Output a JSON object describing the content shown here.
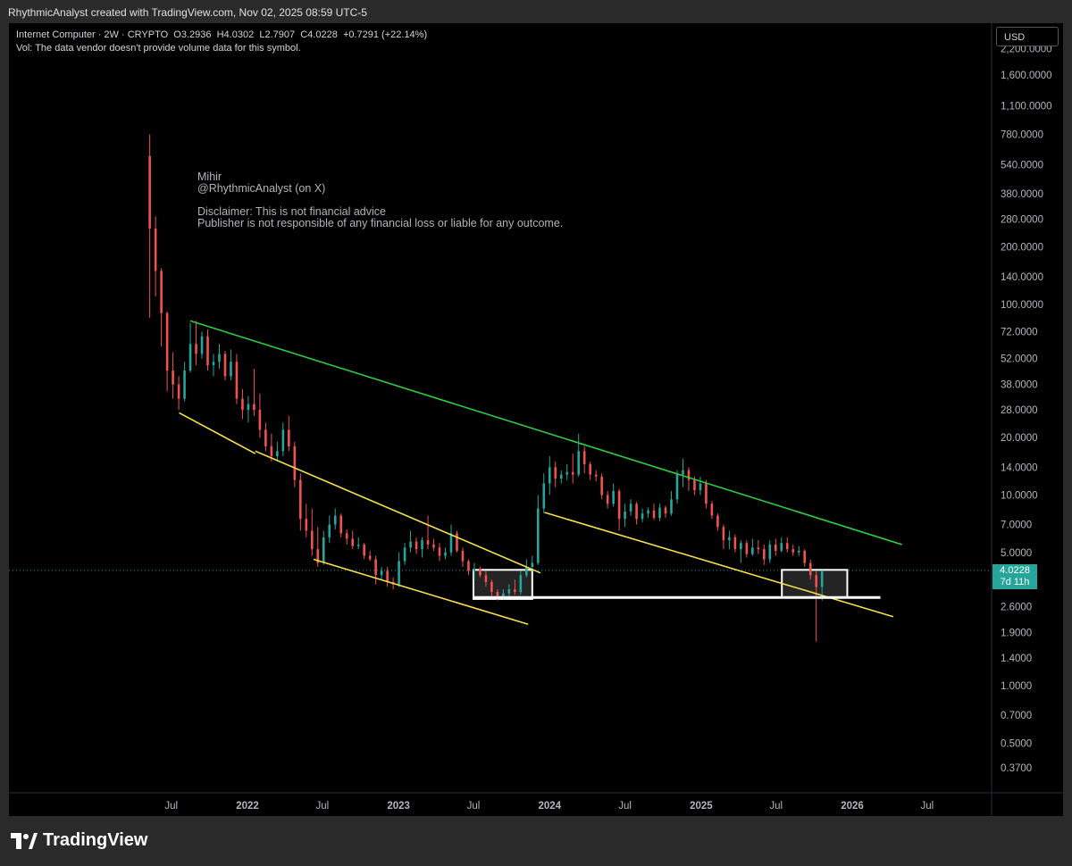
{
  "header": {
    "text": "RhythmicAnalyst created with TradingView.com, Nov 02, 2025 08:59 UTC-5"
  },
  "legend": {
    "symbol": "Internet Computer · 2W · CRYPTO",
    "open": "O3.2936",
    "high": "H4.0302",
    "low": "L2.7907",
    "close": "C4.0228",
    "change": "+0.7291 (+22.14%)",
    "vol_note": "Vol: The data vendor doesn't provide volume data for this symbol."
  },
  "watermark": {
    "lines": [
      "Mihir",
      "@RhythmicAnalyst (on X)",
      "",
      "Disclaimer: This is not financial advice",
      "Publisher is not responsible of any financial loss or liable for any outcome."
    ]
  },
  "currency_button": "USD",
  "price_badge": {
    "price": "4.0228",
    "countdown": "7d 11h"
  },
  "footer": {
    "brand": "TradingView",
    "logo_icon": "tradingview-logo-icon"
  },
  "colors": {
    "up": "#26a69a",
    "down": "#ef5350",
    "resistance": "#2ecc40",
    "channel": "#f5e04a",
    "support": "#ffffff"
  },
  "chart_data": {
    "type": "candlestick",
    "symbol": "Internet Computer",
    "interval": "2W",
    "y_scale": "log",
    "y_ticks": [
      "2,200.0000",
      "1,600.0000",
      "1,100.0000",
      "780.0000",
      "540.0000",
      "380.0000",
      "280.0000",
      "200.0000",
      "140.0000",
      "100.0000",
      "72.0000",
      "52.0000",
      "38.0000",
      "28.0000",
      "20.0000",
      "14.0000",
      "10.0000",
      "7.0000",
      "5.0000",
      "2.6000",
      "1.9000",
      "1.4000",
      "1.0000",
      "0.7000",
      "0.5000",
      "0.3700"
    ],
    "x_ticks": [
      {
        "label": "Jul",
        "t": "2021-07-01",
        "bold": false
      },
      {
        "label": "2022",
        "t": "2022-01-01",
        "bold": true
      },
      {
        "label": "Jul",
        "t": "2022-07-01",
        "bold": false
      },
      {
        "label": "2023",
        "t": "2023-01-01",
        "bold": true
      },
      {
        "label": "Jul",
        "t": "2023-07-01",
        "bold": false
      },
      {
        "label": "2024",
        "t": "2024-01-01",
        "bold": true
      },
      {
        "label": "Jul",
        "t": "2024-07-01",
        "bold": false
      },
      {
        "label": "2025",
        "t": "2025-01-01",
        "bold": true
      },
      {
        "label": "Jul",
        "t": "2025-07-01",
        "bold": false
      },
      {
        "label": "2026",
        "t": "2026-01-01",
        "bold": true
      },
      {
        "label": "Jul",
        "t": "2026-07-01",
        "bold": false
      }
    ],
    "last_price": 4.0228,
    "candles": [
      {
        "t": "2021-05-10",
        "o": 600,
        "h": 780,
        "l": 85,
        "c": 250
      },
      {
        "t": "2021-05-24",
        "o": 250,
        "h": 290,
        "l": 110,
        "c": 150
      },
      {
        "t": "2021-06-07",
        "o": 150,
        "h": 155,
        "l": 60,
        "c": 90
      },
      {
        "t": "2021-06-21",
        "o": 90,
        "h": 92,
        "l": 35,
        "c": 45
      },
      {
        "t": "2021-07-05",
        "o": 45,
        "h": 56,
        "l": 32,
        "c": 38
      },
      {
        "t": "2021-07-19",
        "o": 38,
        "h": 42,
        "l": 28,
        "c": 32
      },
      {
        "t": "2021-08-02",
        "o": 32,
        "h": 50,
        "l": 31,
        "c": 45
      },
      {
        "t": "2021-08-16",
        "o": 45,
        "h": 80,
        "l": 44,
        "c": 62
      },
      {
        "t": "2021-08-30",
        "o": 62,
        "h": 82,
        "l": 48,
        "c": 55
      },
      {
        "t": "2021-09-13",
        "o": 55,
        "h": 72,
        "l": 52,
        "c": 68
      },
      {
        "t": "2021-09-27",
        "o": 68,
        "h": 74,
        "l": 45,
        "c": 48
      },
      {
        "t": "2021-10-11",
        "o": 48,
        "h": 55,
        "l": 42,
        "c": 50
      },
      {
        "t": "2021-10-25",
        "o": 50,
        "h": 62,
        "l": 46,
        "c": 55
      },
      {
        "t": "2021-11-08",
        "o": 55,
        "h": 57,
        "l": 40,
        "c": 42
      },
      {
        "t": "2021-11-22",
        "o": 42,
        "h": 58,
        "l": 40,
        "c": 50
      },
      {
        "t": "2021-12-06",
        "o": 50,
        "h": 55,
        "l": 30,
        "c": 32
      },
      {
        "t": "2021-12-20",
        "o": 32,
        "h": 36,
        "l": 25,
        "c": 28
      },
      {
        "t": "2022-01-03",
        "o": 28,
        "h": 33,
        "l": 24,
        "c": 30
      },
      {
        "t": "2022-01-17",
        "o": 30,
        "h": 46,
        "l": 26,
        "c": 28
      },
      {
        "t": "2022-01-31",
        "o": 28,
        "h": 34,
        "l": 20,
        "c": 22
      },
      {
        "t": "2022-02-14",
        "o": 22,
        "h": 24,
        "l": 17,
        "c": 18
      },
      {
        "t": "2022-02-28",
        "o": 18,
        "h": 21,
        "l": 15,
        "c": 16
      },
      {
        "t": "2022-03-14",
        "o": 16,
        "h": 19,
        "l": 15,
        "c": 17
      },
      {
        "t": "2022-03-28",
        "o": 17,
        "h": 24,
        "l": 16,
        "c": 22
      },
      {
        "t": "2022-04-11",
        "o": 22,
        "h": 26,
        "l": 17,
        "c": 18
      },
      {
        "t": "2022-04-25",
        "o": 18,
        "h": 19,
        "l": 11,
        "c": 12
      },
      {
        "t": "2022-05-09",
        "o": 12,
        "h": 13,
        "l": 6.5,
        "c": 7.5
      },
      {
        "t": "2022-05-23",
        "o": 7.5,
        "h": 9,
        "l": 6,
        "c": 6.5
      },
      {
        "t": "2022-06-06",
        "o": 6.5,
        "h": 8.5,
        "l": 4.8,
        "c": 5.2
      },
      {
        "t": "2022-06-20",
        "o": 5.2,
        "h": 6.8,
        "l": 4.2,
        "c": 4.4
      },
      {
        "t": "2022-07-04",
        "o": 4.4,
        "h": 6.5,
        "l": 4.3,
        "c": 6
      },
      {
        "t": "2022-07-18",
        "o": 6,
        "h": 7.8,
        "l": 5.6,
        "c": 7
      },
      {
        "t": "2022-08-01",
        "o": 7,
        "h": 8.5,
        "l": 6.6,
        "c": 7.8
      },
      {
        "t": "2022-08-15",
        "o": 7.8,
        "h": 8,
        "l": 6,
        "c": 6.3
      },
      {
        "t": "2022-08-29",
        "o": 6.3,
        "h": 6.6,
        "l": 5.5,
        "c": 5.9
      },
      {
        "t": "2022-09-12",
        "o": 5.9,
        "h": 6.5,
        "l": 5.2,
        "c": 5.4
      },
      {
        "t": "2022-09-26",
        "o": 5.4,
        "h": 6,
        "l": 5.2,
        "c": 5.5
      },
      {
        "t": "2022-10-10",
        "o": 5.5,
        "h": 5.6,
        "l": 4.6,
        "c": 4.8
      },
      {
        "t": "2022-10-24",
        "o": 4.8,
        "h": 5.1,
        "l": 4.5,
        "c": 4.6
      },
      {
        "t": "2022-11-07",
        "o": 4.6,
        "h": 4.8,
        "l": 3.4,
        "c": 3.8
      },
      {
        "t": "2022-11-21",
        "o": 3.8,
        "h": 4.2,
        "l": 3.6,
        "c": 4
      },
      {
        "t": "2022-12-05",
        "o": 4,
        "h": 4.2,
        "l": 3.3,
        "c": 3.5
      },
      {
        "t": "2022-12-19",
        "o": 3.5,
        "h": 3.7,
        "l": 3.2,
        "c": 3.4
      },
      {
        "t": "2023-01-02",
        "o": 3.4,
        "h": 5,
        "l": 3.3,
        "c": 4.5
      },
      {
        "t": "2023-01-16",
        "o": 4.5,
        "h": 5.6,
        "l": 4.3,
        "c": 5.3
      },
      {
        "t": "2023-01-30",
        "o": 5.3,
        "h": 6.5,
        "l": 5,
        "c": 5.7
      },
      {
        "t": "2023-02-13",
        "o": 5.7,
        "h": 6,
        "l": 4.9,
        "c": 5.2
      },
      {
        "t": "2023-02-27",
        "o": 5.2,
        "h": 6,
        "l": 4.7,
        "c": 5.8
      },
      {
        "t": "2023-03-13",
        "o": 5.8,
        "h": 7.8,
        "l": 5.2,
        "c": 5.5
      },
      {
        "t": "2023-03-27",
        "o": 5.5,
        "h": 5.9,
        "l": 5.1,
        "c": 5.3
      },
      {
        "t": "2023-04-10",
        "o": 5.3,
        "h": 5.6,
        "l": 4.5,
        "c": 4.8
      },
      {
        "t": "2023-04-24",
        "o": 4.8,
        "h": 5.3,
        "l": 4.6,
        "c": 5
      },
      {
        "t": "2023-05-08",
        "o": 5,
        "h": 7,
        "l": 4.8,
        "c": 6.3
      },
      {
        "t": "2023-05-22",
        "o": 6.3,
        "h": 6.5,
        "l": 5,
        "c": 5.1
      },
      {
        "t": "2023-06-05",
        "o": 5.1,
        "h": 5.3,
        "l": 4.2,
        "c": 4.5
      },
      {
        "t": "2023-06-19",
        "o": 4.5,
        "h": 4.6,
        "l": 3.8,
        "c": 4
      },
      {
        "t": "2023-07-03",
        "o": 4,
        "h": 4.4,
        "l": 3.6,
        "c": 4.1
      },
      {
        "t": "2023-07-17",
        "o": 4.1,
        "h": 4.2,
        "l": 3.7,
        "c": 3.8
      },
      {
        "t": "2023-07-31",
        "o": 3.8,
        "h": 4,
        "l": 3.3,
        "c": 3.5
      },
      {
        "t": "2023-08-14",
        "o": 3.5,
        "h": 3.6,
        "l": 2.9,
        "c": 3.1
      },
      {
        "t": "2023-08-28",
        "o": 3.1,
        "h": 3.2,
        "l": 2.8,
        "c": 2.95
      },
      {
        "t": "2023-09-11",
        "o": 2.95,
        "h": 3.2,
        "l": 2.85,
        "c": 3.05
      },
      {
        "t": "2023-09-25",
        "o": 3.05,
        "h": 3.4,
        "l": 2.9,
        "c": 3.2
      },
      {
        "t": "2023-10-09",
        "o": 3.2,
        "h": 3.6,
        "l": 3,
        "c": 3.1
      },
      {
        "t": "2023-10-23",
        "o": 3.1,
        "h": 4,
        "l": 3,
        "c": 3.8
      },
      {
        "t": "2023-11-06",
        "o": 3.8,
        "h": 4.6,
        "l": 3.7,
        "c": 4.2
      },
      {
        "t": "2023-11-20",
        "o": 4.2,
        "h": 4.8,
        "l": 4,
        "c": 4.4
      },
      {
        "t": "2023-12-04",
        "o": 4.4,
        "h": 10,
        "l": 4.3,
        "c": 8.5
      },
      {
        "t": "2023-12-18",
        "o": 8.5,
        "h": 13,
        "l": 8,
        "c": 11.5
      },
      {
        "t": "2024-01-01",
        "o": 11.5,
        "h": 16,
        "l": 10,
        "c": 14
      },
      {
        "t": "2024-01-15",
        "o": 14,
        "h": 15,
        "l": 11,
        "c": 12.2
      },
      {
        "t": "2024-01-29",
        "o": 12.2,
        "h": 13.5,
        "l": 11.5,
        "c": 12.8
      },
      {
        "t": "2024-02-12",
        "o": 12.8,
        "h": 14.5,
        "l": 12,
        "c": 13.2
      },
      {
        "t": "2024-02-26",
        "o": 13.2,
        "h": 16.5,
        "l": 11.5,
        "c": 12.8
      },
      {
        "t": "2024-03-11",
        "o": 12.8,
        "h": 21,
        "l": 12.5,
        "c": 17
      },
      {
        "t": "2024-03-25",
        "o": 17,
        "h": 18,
        "l": 13,
        "c": 14.5
      },
      {
        "t": "2024-04-08",
        "o": 14.5,
        "h": 15,
        "l": 12,
        "c": 12.8
      },
      {
        "t": "2024-04-22",
        "o": 12.8,
        "h": 13.5,
        "l": 11.8,
        "c": 12.5
      },
      {
        "t": "2024-05-06",
        "o": 12.5,
        "h": 13,
        "l": 9.5,
        "c": 10
      },
      {
        "t": "2024-05-20",
        "o": 10,
        "h": 10.5,
        "l": 8.5,
        "c": 9
      },
      {
        "t": "2024-06-03",
        "o": 9,
        "h": 11.5,
        "l": 8.7,
        "c": 10.5
      },
      {
        "t": "2024-06-17",
        "o": 10.5,
        "h": 10.8,
        "l": 6.5,
        "c": 7.5
      },
      {
        "t": "2024-07-01",
        "o": 7.5,
        "h": 9,
        "l": 6.8,
        "c": 8.2
      },
      {
        "t": "2024-07-15",
        "o": 8.2,
        "h": 9.5,
        "l": 7.8,
        "c": 9
      },
      {
        "t": "2024-07-29",
        "o": 9,
        "h": 9.2,
        "l": 7,
        "c": 7.5
      },
      {
        "t": "2024-08-12",
        "o": 7.5,
        "h": 8.5,
        "l": 7.2,
        "c": 8
      },
      {
        "t": "2024-08-26",
        "o": 8,
        "h": 8.6,
        "l": 7.6,
        "c": 8.3
      },
      {
        "t": "2024-09-09",
        "o": 8.3,
        "h": 9,
        "l": 7.4,
        "c": 7.6
      },
      {
        "t": "2024-09-23",
        "o": 7.6,
        "h": 9,
        "l": 7.3,
        "c": 8.6
      },
      {
        "t": "2024-10-07",
        "o": 8.6,
        "h": 8.8,
        "l": 7.6,
        "c": 8
      },
      {
        "t": "2024-10-21",
        "o": 8,
        "h": 10.5,
        "l": 7.8,
        "c": 9.5
      },
      {
        "t": "2024-11-04",
        "o": 9.5,
        "h": 13.5,
        "l": 9,
        "c": 12.8
      },
      {
        "t": "2024-11-18",
        "o": 12.8,
        "h": 15.5,
        "l": 11,
        "c": 13.5
      },
      {
        "t": "2024-12-02",
        "o": 13.5,
        "h": 14,
        "l": 10.5,
        "c": 12
      },
      {
        "t": "2024-12-16",
        "o": 12,
        "h": 12.5,
        "l": 10,
        "c": 10.6
      },
      {
        "t": "2024-12-30",
        "o": 10.6,
        "h": 12.5,
        "l": 10,
        "c": 11.5
      },
      {
        "t": "2025-01-13",
        "o": 11.5,
        "h": 12,
        "l": 8.5,
        "c": 9
      },
      {
        "t": "2025-01-27",
        "o": 9,
        "h": 9.3,
        "l": 7.5,
        "c": 7.8
      },
      {
        "t": "2025-02-10",
        "o": 7.8,
        "h": 8,
        "l": 6.5,
        "c": 6.8
      },
      {
        "t": "2025-02-24",
        "o": 6.8,
        "h": 7,
        "l": 5.2,
        "c": 5.8
      },
      {
        "t": "2025-03-10",
        "o": 5.8,
        "h": 6.5,
        "l": 5.2,
        "c": 6
      },
      {
        "t": "2025-03-24",
        "o": 6,
        "h": 6.2,
        "l": 5,
        "c": 5.2
      },
      {
        "t": "2025-04-07",
        "o": 5.2,
        "h": 5.8,
        "l": 4.4,
        "c": 5.6
      },
      {
        "t": "2025-04-21",
        "o": 5.6,
        "h": 5.8,
        "l": 4.7,
        "c": 4.9
      },
      {
        "t": "2025-05-05",
        "o": 4.9,
        "h": 5.9,
        "l": 4.8,
        "c": 5.3
      },
      {
        "t": "2025-05-19",
        "o": 5.3,
        "h": 5.8,
        "l": 4.9,
        "c": 5.2
      },
      {
        "t": "2025-06-02",
        "o": 5.2,
        "h": 5.5,
        "l": 4.3,
        "c": 4.6
      },
      {
        "t": "2025-06-16",
        "o": 4.6,
        "h": 5.8,
        "l": 4.4,
        "c": 5.5
      },
      {
        "t": "2025-06-30",
        "o": 5.5,
        "h": 5.9,
        "l": 4.8,
        "c": 5.1
      },
      {
        "t": "2025-07-14",
        "o": 5.1,
        "h": 6,
        "l": 5,
        "c": 5.6
      },
      {
        "t": "2025-07-28",
        "o": 5.6,
        "h": 6,
        "l": 5,
        "c": 5.2
      },
      {
        "t": "2025-08-11",
        "o": 5.2,
        "h": 5.5,
        "l": 4.8,
        "c": 5
      },
      {
        "t": "2025-08-25",
        "o": 5,
        "h": 5.4,
        "l": 4.8,
        "c": 5.1
      },
      {
        "t": "2025-09-08",
        "o": 5.1,
        "h": 5.2,
        "l": 4.2,
        "c": 4.4
      },
      {
        "t": "2025-09-22",
        "o": 4.4,
        "h": 4.6,
        "l": 3.6,
        "c": 3.8
      },
      {
        "t": "2025-10-06",
        "o": 3.8,
        "h": 4,
        "l": 1.7,
        "c": 3.29
      },
      {
        "t": "2025-10-20",
        "o": 3.2936,
        "h": 4.0302,
        "l": 2.7907,
        "c": 4.0228
      }
    ],
    "drawings": {
      "resistance_line": {
        "p1": {
          "t": "2021-08-16",
          "v": 82
        },
        "p2": {
          "t": "2026-05-01",
          "v": 5.5
        },
        "color": "green"
      },
      "channel_1_upper": {
        "p1": {
          "t": "2022-01-20",
          "v": 17
        },
        "p2": {
          "t": "2023-12-10",
          "v": 3.9
        },
        "color": "yellow"
      },
      "channel_1_lower": {
        "p1": {
          "t": "2021-07-20",
          "v": 27
        },
        "p2": {
          "t": "2022-01-20",
          "v": 16.5
        },
        "color": "yellow"
      },
      "channel_2_upper": {
        "p1": {
          "t": "2022-06-10",
          "v": 4.6
        },
        "p2": {
          "t": "2023-11-10",
          "v": 2.1
        },
        "color": "yellow"
      },
      "channel_3_lower": {
        "p1": {
          "t": "2023-12-20",
          "v": 8.1
        },
        "p2": {
          "t": "2026-04-10",
          "v": 2.3
        },
        "color": "yellow"
      },
      "support_level": {
        "p1": {
          "t": "2023-07-01",
          "v": 2.9
        },
        "p2": {
          "t": "2026-03-10",
          "v": 2.9
        },
        "color": "white"
      },
      "zone_1": {
        "t1": "2023-07-01",
        "t2": "2023-11-20",
        "v_top": 4.05,
        "v_bottom": 2.85
      },
      "zone_2": {
        "t1": "2025-07-15",
        "t2": "2025-12-20",
        "v_top": 4.05,
        "v_bottom": 2.9
      }
    }
  }
}
